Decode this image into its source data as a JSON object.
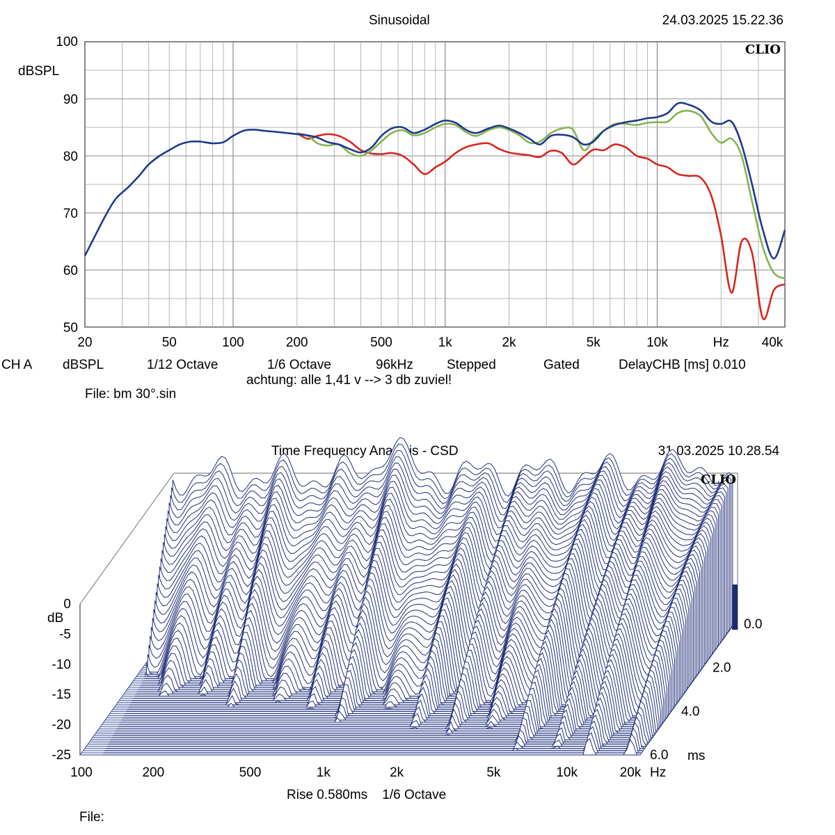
{
  "top": {
    "title": "Sinusoidal",
    "timestamp": "24.03.2025 15.22.36",
    "brand": "CLIO",
    "y_unit": "dBSPL",
    "x_ticks": [
      "20",
      "50",
      "100",
      "200",
      "500",
      "1k",
      "2k",
      "5k",
      "10k",
      "Hz",
      "40k"
    ],
    "y_ticks": [
      "100",
      "90",
      "80",
      "70",
      "60",
      "50"
    ],
    "settings": [
      "CH A",
      "dBSPL",
      "1/12 Octave",
      "1/6 Octave",
      "96kHz",
      "Stepped",
      "Gated",
      "DelayCHB [ms] 0.010"
    ],
    "note": "achtung: alle 1,41 v --> 3 db zuviel!",
    "file": "File: bm 30°.sin"
  },
  "bottom": {
    "title": "Time Frequency Analysis - CSD",
    "timestamp": "31.03.2025 10.28.54",
    "brand": "CLIO",
    "y_unit": "dB",
    "db_ticks": [
      "0",
      "-5",
      "-10",
      "-15",
      "-20",
      "-25"
    ],
    "x_ticks": [
      "100",
      "200",
      "500",
      "1k",
      "2k",
      "5k",
      "10k",
      "20k"
    ],
    "x_unit": "Hz",
    "time_ticks": [
      "0.0",
      "2.0",
      "4.0",
      "6.0"
    ],
    "time_unit": "ms",
    "settings": "Rise 0.580ms    1/6 Octave",
    "file": "File:"
  },
  "chart_data": [
    {
      "type": "line",
      "title": "Sinusoidal",
      "xlabel": "Hz",
      "ylabel": "dBSPL",
      "xscale": "log",
      "xlim": [
        20,
        40000
      ],
      "ylim": [
        50,
        100
      ],
      "grid": true,
      "series": [
        {
          "color": "#1f3a8c",
          "x": [
            20,
            22,
            25,
            28,
            32,
            36,
            40,
            45,
            50,
            56,
            63,
            70,
            80,
            90,
            100,
            112,
            125,
            140,
            160,
            180,
            200,
            225,
            250,
            280,
            315,
            355,
            400,
            450,
            500,
            560,
            630,
            710,
            800,
            900,
            1000,
            1120,
            1250,
            1400,
            1600,
            1800,
            2000,
            2240,
            2500,
            2800,
            3150,
            3550,
            4000,
            4500,
            5000,
            5600,
            6300,
            7100,
            8000,
            9000,
            10000,
            11200,
            12500,
            14000,
            16000,
            18000,
            20000,
            22400,
            25000,
            28000,
            31500,
            35500,
            40000
          ],
          "y": [
            62.5,
            65.5,
            69.5,
            72.5,
            74.5,
            76.5,
            78.5,
            80.0,
            81.0,
            82.0,
            82.5,
            82.5,
            82.2,
            82.4,
            83.5,
            84.4,
            84.6,
            84.4,
            84.2,
            84.0,
            83.8,
            83.6,
            83.2,
            82.4,
            82.0,
            81.2,
            80.6,
            81.5,
            83.5,
            84.8,
            85.0,
            84.0,
            84.6,
            85.6,
            86.2,
            85.8,
            84.6,
            84.0,
            84.8,
            85.3,
            84.8,
            84.0,
            83.0,
            82.0,
            83.5,
            83.7,
            83.3,
            82.0,
            82.5,
            84.4,
            85.4,
            85.9,
            86.2,
            86.6,
            86.8,
            87.5,
            89.2,
            89.0,
            88.0,
            86.0,
            85.6,
            86.0,
            82.0,
            75.0,
            67.0,
            62.0,
            67.0
          ]
        },
        {
          "color": "#86b350",
          "x": [
            200,
            225,
            250,
            280,
            315,
            355,
            400,
            450,
            500,
            560,
            630,
            710,
            800,
            900,
            1000,
            1120,
            1250,
            1400,
            1600,
            1800,
            2000,
            2240,
            2500,
            2800,
            3150,
            3550,
            4000,
            4500,
            5000,
            5600,
            6300,
            7100,
            8000,
            9000,
            10000,
            11200,
            12500,
            14000,
            16000,
            18000,
            20000,
            22400,
            25000,
            28000,
            31500,
            35500,
            40000
          ],
          "y": [
            84.0,
            83.5,
            82.2,
            81.8,
            82.0,
            80.5,
            80.0,
            81.0,
            82.5,
            84.0,
            84.5,
            83.6,
            84.0,
            85.0,
            85.6,
            85.4,
            84.2,
            83.5,
            84.5,
            85.0,
            84.5,
            83.6,
            82.3,
            82.5,
            84.0,
            84.8,
            84.6,
            81.0,
            82.8,
            84.4,
            85.6,
            85.6,
            85.4,
            85.8,
            85.9,
            86.0,
            87.5,
            87.9,
            87.0,
            84.0,
            82.3,
            83.0,
            80.0,
            72.0,
            64.0,
            59.5,
            58.5
          ]
        },
        {
          "color": "#d4281f",
          "x": [
            200,
            225,
            250,
            280,
            315,
            355,
            400,
            450,
            500,
            560,
            630,
            710,
            800,
            900,
            1000,
            1120,
            1250,
            1400,
            1600,
            1800,
            2000,
            2240,
            2500,
            2800,
            3150,
            3550,
            4000,
            4500,
            5000,
            5600,
            6300,
            7100,
            8000,
            9000,
            10000,
            11200,
            12500,
            14000,
            16000,
            18000,
            20000,
            22400,
            25000,
            28000,
            31500,
            35500,
            40000
          ],
          "y": [
            84.0,
            83.0,
            83.5,
            83.8,
            83.5,
            82.5,
            81.0,
            80.4,
            80.3,
            80.5,
            80.0,
            78.5,
            76.8,
            78.0,
            79.0,
            80.5,
            81.5,
            82.0,
            82.2,
            81.2,
            80.6,
            80.3,
            80.1,
            79.8,
            80.9,
            80.5,
            78.5,
            79.8,
            81.1,
            81.0,
            82.0,
            81.5,
            80.0,
            79.5,
            78.5,
            78.0,
            76.8,
            76.5,
            76.2,
            73.0,
            66.0,
            56.0,
            65.0,
            63.0,
            51.5,
            56.5,
            57.5
          ]
        }
      ]
    },
    {
      "type": "waterfall",
      "title": "Time Frequency Analysis - CSD",
      "xlabel": "Hz",
      "ylabel": "dB",
      "zlabel": "ms",
      "xscale": "log",
      "xlim": [
        100,
        20000
      ],
      "ylim": [
        -25,
        0
      ],
      "zlim": [
        0,
        6
      ],
      "slices": 60
    }
  ]
}
